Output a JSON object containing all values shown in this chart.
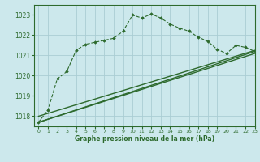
{
  "title": "Graphe pression niveau de la mer (hPa)",
  "bg_color": "#cce8ec",
  "grid_color": "#aacdd4",
  "line_color": "#2d6a2d",
  "xlim": [
    -0.5,
    23
  ],
  "ylim": [
    1017.5,
    1023.5
  ],
  "yticks": [
    1018,
    1019,
    1020,
    1021,
    1022,
    1023
  ],
  "xticks": [
    0,
    1,
    2,
    3,
    4,
    5,
    6,
    7,
    8,
    9,
    10,
    11,
    12,
    13,
    14,
    15,
    16,
    17,
    18,
    19,
    20,
    21,
    22,
    23
  ],
  "series": {
    "main_line": {
      "x": [
        0,
        1,
        2,
        3,
        4,
        5,
        6,
        7,
        8,
        9,
        10,
        11,
        12,
        13,
        14,
        15,
        16,
        17,
        18,
        19,
        20,
        21,
        22,
        23
      ],
      "y": [
        1017.7,
        1018.3,
        1019.85,
        1020.2,
        1021.25,
        1021.55,
        1021.65,
        1021.75,
        1021.85,
        1022.2,
        1023.0,
        1022.85,
        1023.05,
        1022.85,
        1022.55,
        1022.35,
        1022.2,
        1021.9,
        1021.7,
        1021.3,
        1021.1,
        1021.5,
        1021.4,
        1021.2
      ]
    },
    "trend1": {
      "x": [
        0,
        23
      ],
      "y": [
        1017.7,
        1021.2
      ]
    },
    "trend2": {
      "x": [
        0,
        23
      ],
      "y": [
        1017.7,
        1021.1
      ]
    },
    "trend3": {
      "x": [
        0,
        23
      ],
      "y": [
        1018.0,
        1021.25
      ]
    }
  }
}
